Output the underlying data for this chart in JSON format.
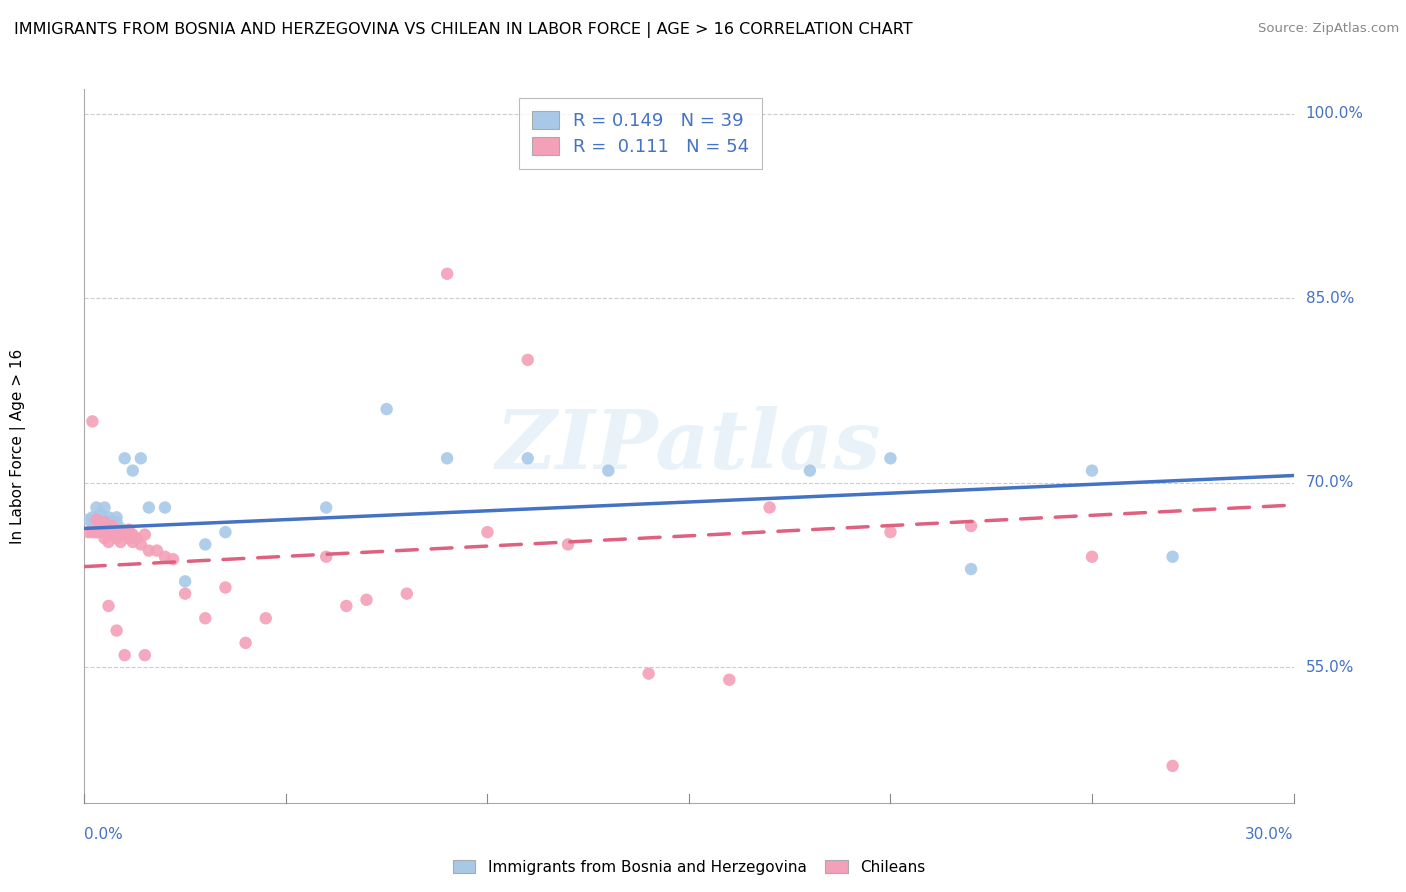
{
  "title": "IMMIGRANTS FROM BOSNIA AND HERZEGOVINA VS CHILEAN IN LABOR FORCE | AGE > 16 CORRELATION CHART",
  "source": "Source: ZipAtlas.com",
  "ylabel": "In Labor Force | Age > 16",
  "xmin": 0.0,
  "xmax": 0.3,
  "ymin": 0.44,
  "ymax": 1.02,
  "bosnia_R": 0.149,
  "bosnia_N": 39,
  "chilean_R": 0.111,
  "chilean_N": 54,
  "bosnia_color": "#a8c8e8",
  "chilean_color": "#f4a0b8",
  "bosnia_line_color": "#4472c4",
  "chilean_line_color": "#e06080",
  "watermark": "ZIPatlas",
  "grid_color": "#cccccc",
  "bosnia_line_y0": 0.663,
  "bosnia_line_y1": 0.706,
  "chilean_line_y0": 0.632,
  "chilean_line_y1": 0.682,
  "bosnia_x": [
    0.001,
    0.002,
    0.002,
    0.003,
    0.003,
    0.003,
    0.004,
    0.004,
    0.004,
    0.005,
    0.005,
    0.005,
    0.006,
    0.006,
    0.006,
    0.007,
    0.007,
    0.008,
    0.008,
    0.009,
    0.009,
    0.01,
    0.012,
    0.014,
    0.016,
    0.02,
    0.025,
    0.03,
    0.035,
    0.06,
    0.075,
    0.09,
    0.11,
    0.13,
    0.18,
    0.2,
    0.22,
    0.25,
    0.27
  ],
  "bosnia_y": [
    0.67,
    0.668,
    0.672,
    0.66,
    0.67,
    0.68,
    0.67,
    0.668,
    0.675,
    0.665,
    0.67,
    0.68,
    0.663,
    0.672,
    0.66,
    0.668,
    0.665,
    0.668,
    0.672,
    0.663,
    0.66,
    0.72,
    0.71,
    0.72,
    0.68,
    0.68,
    0.62,
    0.65,
    0.66,
    0.68,
    0.76,
    0.72,
    0.72,
    0.71,
    0.71,
    0.72,
    0.63,
    0.71,
    0.64
  ],
  "chilean_x": [
    0.001,
    0.002,
    0.002,
    0.003,
    0.003,
    0.004,
    0.004,
    0.005,
    0.005,
    0.005,
    0.006,
    0.006,
    0.007,
    0.007,
    0.008,
    0.008,
    0.009,
    0.01,
    0.01,
    0.011,
    0.011,
    0.012,
    0.012,
    0.013,
    0.014,
    0.015,
    0.016,
    0.018,
    0.02,
    0.022,
    0.025,
    0.03,
    0.035,
    0.04,
    0.045,
    0.06,
    0.065,
    0.07,
    0.08,
    0.09,
    0.1,
    0.11,
    0.12,
    0.14,
    0.16,
    0.17,
    0.2,
    0.22,
    0.25,
    0.006,
    0.008,
    0.01,
    0.015,
    0.27
  ],
  "chilean_y": [
    0.66,
    0.75,
    0.66,
    0.67,
    0.66,
    0.665,
    0.66,
    0.66,
    0.655,
    0.668,
    0.652,
    0.66,
    0.66,
    0.665,
    0.655,
    0.658,
    0.652,
    0.658,
    0.66,
    0.655,
    0.662,
    0.658,
    0.652,
    0.655,
    0.65,
    0.658,
    0.645,
    0.645,
    0.64,
    0.638,
    0.61,
    0.59,
    0.615,
    0.57,
    0.59,
    0.64,
    0.6,
    0.605,
    0.61,
    0.87,
    0.66,
    0.8,
    0.65,
    0.545,
    0.54,
    0.68,
    0.66,
    0.665,
    0.64,
    0.6,
    0.58,
    0.56,
    0.56,
    0.47
  ]
}
